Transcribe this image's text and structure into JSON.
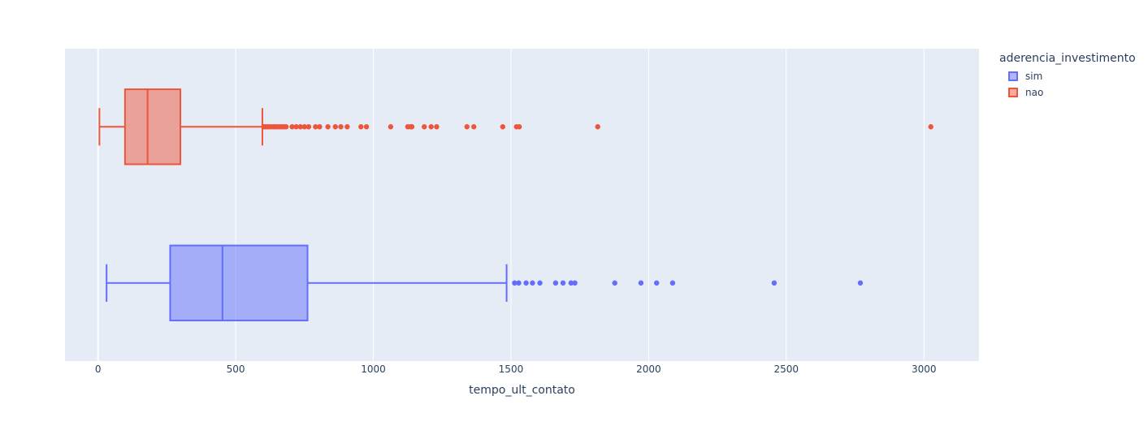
{
  "chart_data": {
    "type": "box",
    "orientation": "horizontal",
    "xlabel": "tempo_ult_contato",
    "xlim": [
      -120,
      3200
    ],
    "xticks": [
      0,
      500,
      1000,
      1500,
      2000,
      2500,
      3000
    ],
    "grid": true,
    "legend": {
      "title": "aderencia_investimento",
      "placement": "right-top"
    },
    "series": [
      {
        "name": "sim",
        "color": "#636efa",
        "whisker_low": 31,
        "q1": 262,
        "median": 452,
        "q3": 761,
        "whisker_high": 1484,
        "outliers": [
          1513,
          1528,
          1555,
          1578,
          1605,
          1662,
          1689,
          1718,
          1732,
          1877,
          1972,
          2029,
          2087,
          2456,
          2769
        ]
      },
      {
        "name": "nao",
        "color": "#ef553b",
        "whisker_low": 5,
        "q1": 98,
        "median": 180,
        "q3": 299,
        "whisker_high": 597,
        "outliers": [
          602,
          608,
          615,
          622,
          630,
          638,
          645,
          652,
          660,
          668,
          675,
          683,
          705,
          720,
          735,
          750,
          765,
          790,
          805,
          835,
          862,
          882,
          905,
          955,
          975,
          1063,
          1125,
          1135,
          1140,
          1185,
          1210,
          1230,
          1340,
          1365,
          1470,
          1520,
          1530,
          1815,
          3025
        ]
      }
    ]
  }
}
